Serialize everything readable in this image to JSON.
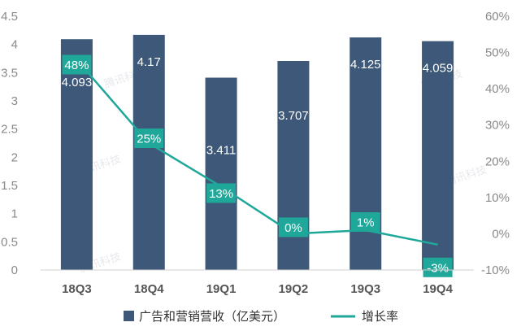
{
  "chart_data": {
    "type": "bar",
    "categories": [
      "18Q3",
      "18Q4",
      "19Q1",
      "19Q2",
      "19Q3",
      "19Q4"
    ],
    "series": [
      {
        "name": "广告和营销营收（亿美元）",
        "type": "bar",
        "axis": "left",
        "values": [
          4.093,
          4.17,
          3.411,
          3.707,
          4.125,
          4.059
        ],
        "labels": [
          "4.093",
          "4.17",
          "3.411",
          "3.707",
          "4.125",
          "4.059"
        ],
        "color": "#3D5878"
      },
      {
        "name": "增长率",
        "type": "line",
        "axis": "right",
        "values": [
          48,
          25,
          13,
          0,
          1,
          -3
        ],
        "labels": [
          "48%",
          "25%",
          "13%",
          "0%",
          "1%",
          "-3%"
        ],
        "color": "#1FA89A"
      }
    ],
    "y_left": {
      "range": [
        0,
        4.5
      ],
      "ticks": [
        "0",
        "0.5",
        "1",
        "1.5",
        "2",
        "2.5",
        "3",
        "3.5",
        "4",
        "4.5"
      ]
    },
    "y_right": {
      "range": [
        -10,
        60
      ],
      "ticks": [
        "-10%",
        "0%",
        "10%",
        "20%",
        "30%",
        "40%",
        "50%",
        "60%"
      ]
    },
    "grid": false,
    "legend": "bottom",
    "watermark": "腾讯科技"
  }
}
